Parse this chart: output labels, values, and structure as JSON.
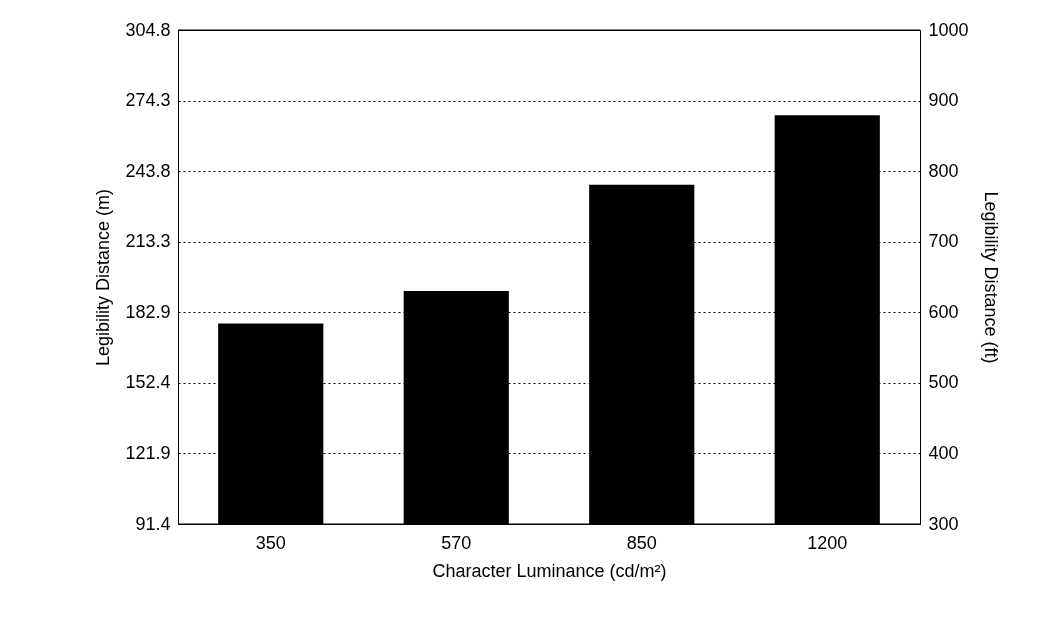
{
  "chart_data": {
    "type": "bar",
    "xlabel": "Character Luminance (cd/m²)",
    "ylabel": "Legibility Distance (m)",
    "y2label": "Legibility Distance (ft)",
    "categories": [
      "350",
      "570",
      "850",
      "1200"
    ],
    "series": [
      {
        "color": "#000000",
        "values": [
          178,
          192,
          238,
          268
        ]
      }
    ],
    "ylim": [
      91.4,
      304.8
    ],
    "yticks": [
      91.4,
      121.9,
      152.4,
      182.9,
      213.3,
      243.8,
      274.3,
      304.8
    ],
    "y2lim": [
      300,
      1000
    ],
    "y2ticks": [
      300,
      400,
      500,
      600,
      700,
      800,
      900,
      1000
    ],
    "grid": "y"
  }
}
